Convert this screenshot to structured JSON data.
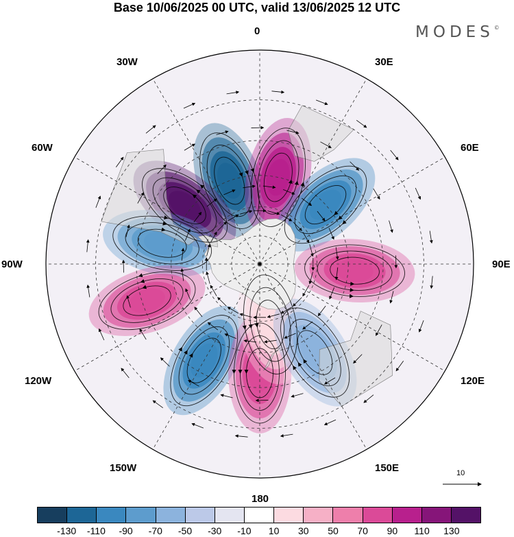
{
  "title": "Base 10/06/2025 00 UTC, valid 13/06/2025 12 UTC",
  "logo": "MODES",
  "logo_mark": "©",
  "longitude_labels": {
    "lon_0": "0",
    "lon_30e": "30E",
    "lon_60e": "60E",
    "lon_90e": "90E",
    "lon_120e": "120E",
    "lon_150e": "150E",
    "lon_180": "180",
    "lon_150w": "150W",
    "lon_120w": "120W",
    "lon_90w": "90W",
    "lon_60w": "60W",
    "lon_30w": "30W"
  },
  "projection": "south polar stereographic",
  "field": "shaded anomaly with streamlines",
  "reference_vector": "10",
  "colorbar": {
    "ticks": [
      "-130",
      "-110",
      "-90",
      "-70",
      "-50",
      "-30",
      "-10",
      "10",
      "30",
      "50",
      "70",
      "90",
      "110",
      "130"
    ],
    "colors": [
      "#173e5e",
      "#1d6696",
      "#3a88bf",
      "#5d9ccd",
      "#8cb3dd",
      "#bcc9e8",
      "#e4e5f1",
      "#ffffff",
      "#fcdbe1",
      "#f6b0c6",
      "#ee7fab",
      "#db4a98",
      "#b8208d",
      "#861579",
      "#541267"
    ]
  },
  "anomaly_centers": [
    {
      "name": "trough-near-0",
      "color": "#1d6696",
      "lon": -20,
      "lat": -45
    },
    {
      "name": "ridge-near-15e",
      "color": "#b8208d",
      "lon": 12,
      "lat": -45
    },
    {
      "name": "trough-near-45e",
      "color": "#3a88bf",
      "lon": 48,
      "lat": -45
    },
    {
      "name": "ridge-near-90e",
      "color": "#db4a98",
      "lon": 94,
      "lat": -42
    },
    {
      "name": "ridge-near-55w",
      "color": "#541267",
      "lon": -52,
      "lat": -42
    },
    {
      "name": "trough-near-80w",
      "color": "#5d9ccd",
      "lon": -78,
      "lat": -40
    },
    {
      "name": "ridge-near-105w",
      "color": "#db4a98",
      "lon": -108,
      "lat": -32
    },
    {
      "name": "trough-near-145w",
      "color": "#3a88bf",
      "lon": -150,
      "lat": -35
    },
    {
      "name": "ridge-near-180",
      "color": "#db4a98",
      "lon": 180,
      "lat": -36
    },
    {
      "name": "weak-ridge-near-165e",
      "color": "#fcdbe1",
      "lon": 170,
      "lat": -58
    },
    {
      "name": "weak-trough-near-150e",
      "color": "#8cb3dd",
      "lon": 148,
      "lat": -38
    }
  ]
}
